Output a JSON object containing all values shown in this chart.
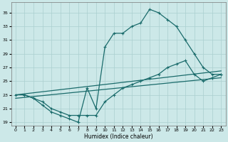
{
  "xlabel": "Humidex (Indice chaleur)",
  "bg_color": "#cce8e8",
  "grid_color": "#aacfcf",
  "line_color": "#1a6b6b",
  "xlim": [
    -0.5,
    23.5
  ],
  "ylim": [
    18.5,
    36.5
  ],
  "xticks": [
    0,
    1,
    2,
    3,
    4,
    5,
    6,
    7,
    8,
    9,
    10,
    11,
    12,
    13,
    14,
    15,
    16,
    17,
    18,
    19,
    20,
    21,
    22,
    23
  ],
  "yticks": [
    19,
    21,
    23,
    25,
    27,
    29,
    31,
    33,
    35
  ],
  "curve1_x": [
    0,
    1,
    2,
    3,
    4,
    5,
    6,
    7,
    8,
    9,
    10,
    11,
    12,
    13,
    14,
    15,
    16,
    17,
    18,
    19,
    20,
    21,
    22,
    23
  ],
  "curve1_y": [
    23,
    23,
    22.5,
    21.5,
    20.5,
    20,
    19.5,
    19,
    24,
    21,
    30,
    32,
    32,
    33,
    33.5,
    35.5,
    35,
    34,
    33,
    31,
    29,
    27,
    26,
    26
  ],
  "curve2_x": [
    1,
    2,
    3,
    4,
    5,
    6,
    7,
    8,
    9,
    10,
    11,
    12,
    13,
    14,
    15,
    16,
    17,
    18,
    19,
    20,
    21,
    22,
    23
  ],
  "curve2_y": [
    23,
    22.5,
    22,
    21,
    20.5,
    20,
    20,
    20,
    20,
    22,
    23,
    24,
    24.5,
    25,
    25.5,
    26,
    27,
    27.5,
    28,
    26,
    25,
    25.5,
    26
  ],
  "trend1_x": [
    0,
    23
  ],
  "trend1_y": [
    23,
    26.5
  ],
  "trend2_x": [
    0,
    23
  ],
  "trend2_y": [
    22.5,
    25.5
  ]
}
